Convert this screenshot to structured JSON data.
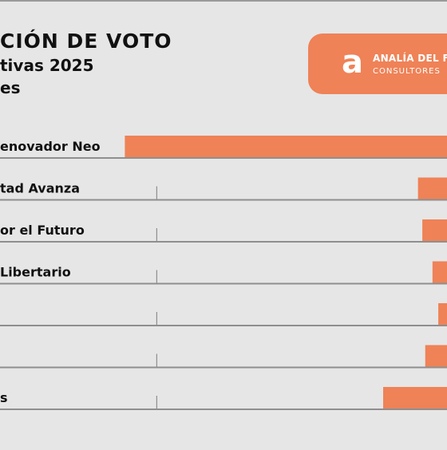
{
  "title": "CIÓN DE VOTO",
  "subtitle": "tivas 2025",
  "unit_line": "es",
  "logo": {
    "mark": "a",
    "name": "ANALÍA DEL FR",
    "sub": "CONSULTORES",
    "color": "#ef8257"
  },
  "chart_data": {
    "type": "bar",
    "orientation": "horizontal",
    "categories": [
      "enovador Neo",
      "tad Avanza",
      "or el Futuro",
      "Libertario",
      "",
      "",
      "s"
    ],
    "values": [
      22.2,
      2.0,
      1.7,
      1.0,
      0.6,
      1.5,
      4.4
    ],
    "bar_color": "#ef8257",
    "grid": true,
    "gridline_values": [
      20
    ],
    "xlim": [
      0,
      23
    ]
  }
}
